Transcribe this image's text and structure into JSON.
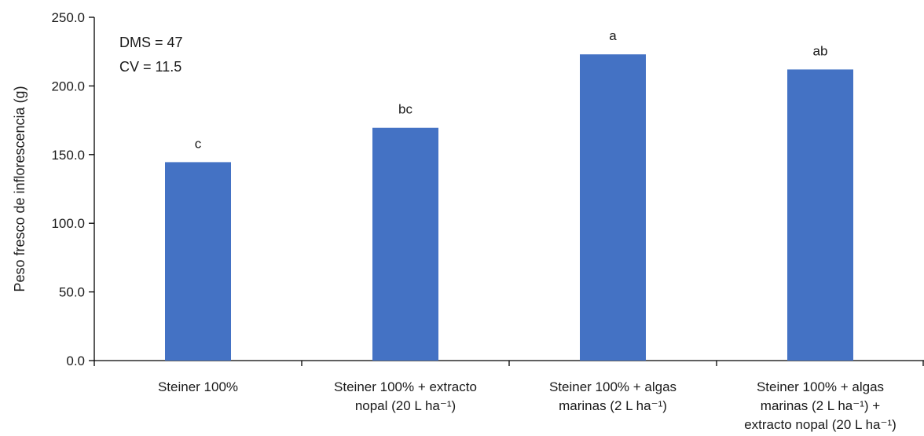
{
  "chart_data": {
    "type": "bar",
    "title": "",
    "xlabel": "",
    "ylabel": "Peso fresco de inflorescencia (g)",
    "ylim": [
      0,
      250
    ],
    "yticks": [
      0,
      50,
      100,
      150,
      200,
      250
    ],
    "ytick_labels": [
      "0.0",
      "50.0",
      "100.0",
      "150.0",
      "200.0",
      "250.0"
    ],
    "categories": [
      [
        "Steiner 100%"
      ],
      [
        "Steiner 100% + extracto",
        "nopal (20 L ha⁻¹)"
      ],
      [
        "Steiner 100% + algas",
        "marinas (2 L ha⁻¹)"
      ],
      [
        "Steiner 100% + algas",
        "marinas (2 L ha⁻¹) +",
        "extracto nopal (20 L ha⁻¹)"
      ]
    ],
    "values": [
      144.5,
      169.5,
      223,
      212
    ],
    "data_labels": [
      "c",
      "bc",
      "a",
      "ab"
    ],
    "annotations": [
      "DMS = 47",
      "CV = 11.5"
    ],
    "bar_color": "#4472C4",
    "grid": false
  }
}
